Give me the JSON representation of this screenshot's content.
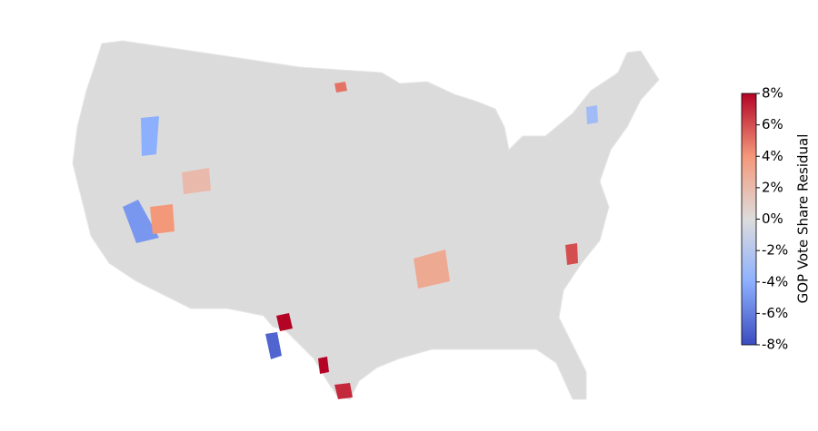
{
  "chart_data": {
    "type": "choropleth",
    "colorbar_label": "GOP Vote Share Residual",
    "clim": [
      -8,
      8
    ],
    "cticks": [
      {
        "value": -8,
        "label": "-8%"
      },
      {
        "value": -6,
        "label": "-6%"
      },
      {
        "value": -4,
        "label": "-4%"
      },
      {
        "value": -2,
        "label": "-2%"
      },
      {
        "value": 0,
        "label": "0%"
      },
      {
        "value": 2,
        "label": "2%"
      },
      {
        "value": 4,
        "label": "4%"
      },
      {
        "value": 6,
        "label": "6%"
      },
      {
        "value": 8,
        "label": "8%"
      }
    ],
    "colormap": [
      "#3b4cc0",
      "#8db0fe",
      "#dddcdc",
      "#f4987a",
      "#b40426"
    ],
    "values": [
      8,
      8,
      7,
      -7,
      -5,
      -4,
      4,
      3,
      5,
      -3,
      2,
      6
    ]
  }
}
